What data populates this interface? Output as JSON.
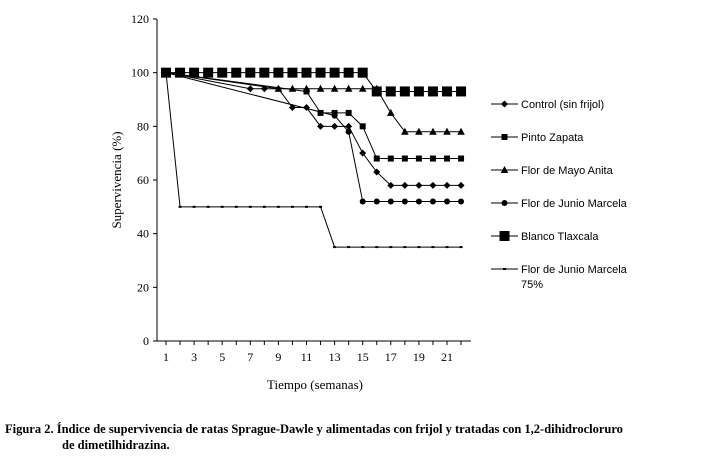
{
  "chart_data": {
    "type": "line",
    "xlabel": "Tiempo (semanas)",
    "ylabel": "Supervivencia (%)",
    "xlim": [
      1,
      22.5
    ],
    "ylim": [
      0,
      120
    ],
    "x_ticks": [
      1,
      3,
      5,
      7,
      9,
      11,
      13,
      15,
      17,
      19,
      21
    ],
    "y_ticks": [
      0,
      20,
      40,
      60,
      80,
      100,
      120
    ],
    "grid": false,
    "legend_position": "right",
    "series": [
      {
        "name": "Control (sin frijol)",
        "marker": "diamond",
        "points": [
          [
            1,
            100
          ],
          [
            7,
            94
          ],
          [
            8,
            94
          ],
          [
            9,
            94
          ],
          [
            10,
            87
          ],
          [
            11,
            87
          ],
          [
            12,
            80
          ],
          [
            13,
            80
          ],
          [
            14,
            80
          ],
          [
            15,
            70
          ],
          [
            16,
            63
          ],
          [
            17,
            58
          ],
          [
            18,
            58
          ],
          [
            19,
            58
          ],
          [
            20,
            58
          ],
          [
            21,
            58
          ],
          [
            22,
            58
          ]
        ]
      },
      {
        "name": "Pinto Zapata",
        "marker": "square",
        "points": [
          [
            1,
            100
          ],
          [
            11,
            93
          ],
          [
            12,
            85
          ],
          [
            13,
            85
          ],
          [
            14,
            85
          ],
          [
            15,
            80
          ],
          [
            16,
            68
          ],
          [
            17,
            68
          ],
          [
            18,
            68
          ],
          [
            19,
            68
          ],
          [
            20,
            68
          ],
          [
            21,
            68
          ],
          [
            22,
            68
          ]
        ]
      },
      {
        "name": "Flor de Mayo Anita",
        "marker": "triangle",
        "points": [
          [
            1,
            100
          ],
          [
            9,
            94
          ],
          [
            10,
            94
          ],
          [
            11,
            94
          ],
          [
            12,
            94
          ],
          [
            13,
            94
          ],
          [
            14,
            94
          ],
          [
            15,
            94
          ],
          [
            16,
            94
          ],
          [
            17,
            85
          ],
          [
            18,
            78
          ],
          [
            19,
            78
          ],
          [
            20,
            78
          ],
          [
            21,
            78
          ],
          [
            22,
            78
          ]
        ]
      },
      {
        "name": "Flor de Junio Marcela",
        "marker": "circle",
        "points": [
          [
            1,
            100
          ],
          [
            13,
            84
          ],
          [
            14,
            78
          ],
          [
            15,
            52
          ],
          [
            16,
            52
          ],
          [
            17,
            52
          ],
          [
            18,
            52
          ],
          [
            19,
            52
          ],
          [
            20,
            52
          ],
          [
            21,
            52
          ],
          [
            22,
            52
          ]
        ]
      },
      {
        "name": "Blanco Tlaxcala",
        "marker": "bigsquare",
        "points": [
          [
            1,
            100
          ],
          [
            2,
            100
          ],
          [
            3,
            100
          ],
          [
            4,
            100
          ],
          [
            5,
            100
          ],
          [
            6,
            100
          ],
          [
            7,
            100
          ],
          [
            8,
            100
          ],
          [
            9,
            100
          ],
          [
            10,
            100
          ],
          [
            11,
            100
          ],
          [
            12,
            100
          ],
          [
            13,
            100
          ],
          [
            14,
            100
          ],
          [
            15,
            100
          ],
          [
            16,
            93
          ],
          [
            17,
            93
          ],
          [
            18,
            93
          ],
          [
            19,
            93
          ],
          [
            20,
            93
          ],
          [
            21,
            93
          ],
          [
            22,
            93
          ]
        ]
      },
      {
        "name": "Flor de Junio Marcela 75%",
        "name_lines": [
          "Flor de Junio Marcela",
          "75%"
        ],
        "marker": "dash",
        "points": [
          [
            1,
            100
          ],
          [
            2,
            50
          ],
          [
            3,
            50
          ],
          [
            4,
            50
          ],
          [
            5,
            50
          ],
          [
            6,
            50
          ],
          [
            7,
            50
          ],
          [
            8,
            50
          ],
          [
            9,
            50
          ],
          [
            10,
            50
          ],
          [
            11,
            50
          ],
          [
            12,
            50
          ],
          [
            13,
            35
          ],
          [
            14,
            35
          ],
          [
            15,
            35
          ],
          [
            16,
            35
          ],
          [
            17,
            35
          ],
          [
            18,
            35
          ],
          [
            19,
            35
          ],
          [
            20,
            35
          ],
          [
            21,
            35
          ],
          [
            22,
            35
          ]
        ]
      }
    ]
  },
  "caption": {
    "line1": "Figura 2. Índice de supervivencia de ratas Sprague-Dawle y alimentadas con frijol y tratadas con 1,2-dihidrocloruro",
    "line2": "de dimetilhidrazina."
  }
}
